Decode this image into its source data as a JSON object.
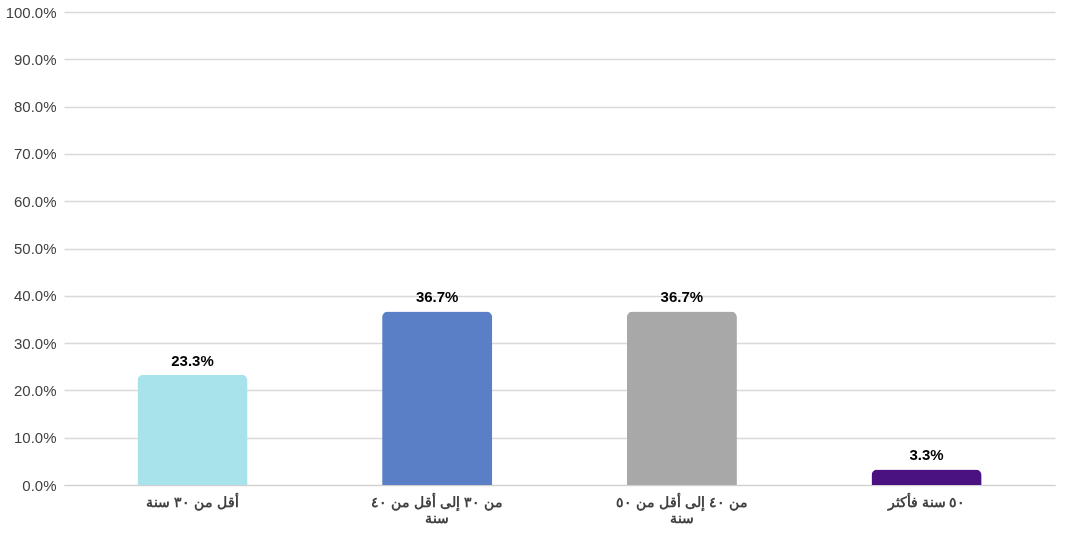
{
  "chart_data": {
    "type": "bar",
    "categories": [
      "أقل من ٣٠ سنة",
      "من ٣٠ إلى أقل من ٤٠ سنة",
      "من ٤٠ إلى أقل من ٥٠ سنة",
      "٥٠ سنة فأكثر"
    ],
    "values": [
      23.3,
      36.7,
      36.7,
      3.3
    ],
    "colors": [
      "#a8e2ea",
      "#5a7fc6",
      "#a8a8a8",
      "#4a1280"
    ],
    "value_labels": [
      "23.3%",
      "36.7%",
      "36.7%",
      "3.3%"
    ],
    "ylim": [
      0,
      100
    ],
    "yticks": [
      {
        "value": 0,
        "label": "0.0%"
      },
      {
        "value": 10,
        "label": "10.0%"
      },
      {
        "value": 20,
        "label": "20.0%"
      },
      {
        "value": 30,
        "label": "30.0%"
      },
      {
        "value": 40,
        "label": "40.0%"
      },
      {
        "value": 50,
        "label": "50.0%"
      },
      {
        "value": 60,
        "label": "60.0%"
      },
      {
        "value": 70,
        "label": "70.0%"
      },
      {
        "value": 80,
        "label": "80.0%"
      },
      {
        "value": 90,
        "label": "90.0%"
      },
      {
        "value": 100,
        "label": "100.0%"
      }
    ],
    "grid": "y"
  }
}
